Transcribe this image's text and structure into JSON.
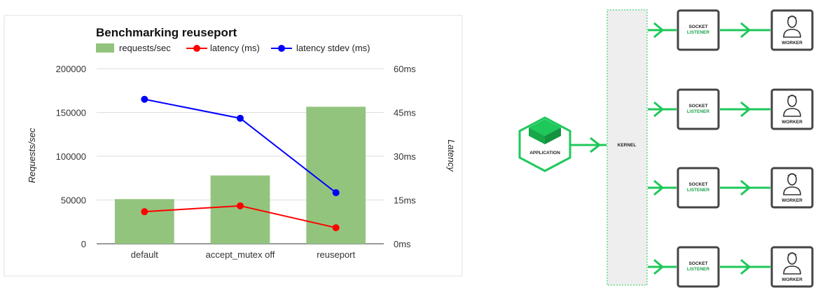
{
  "chart_data": {
    "type": "bar",
    "title": "Benchmarking reuseport",
    "categories": [
      "default",
      "accept_mutex off",
      "reuseport"
    ],
    "ylabel": "Requests/sec",
    "y2label": "Latency",
    "ylim": [
      0,
      200000
    ],
    "y2lim": [
      0,
      60
    ],
    "y_ticks": [
      "0",
      "50000",
      "100000",
      "150000",
      "200000"
    ],
    "y2_ticks": [
      "0ms",
      "15ms",
      "30ms",
      "45ms",
      "60ms"
    ],
    "grid": true,
    "legend_position": "top",
    "series": [
      {
        "name": "requests/sec",
        "type": "bar",
        "axis": "left",
        "color": "#93c47d",
        "values": [
          51000,
          78000,
          156500
        ]
      },
      {
        "name": "latency (ms)",
        "type": "line",
        "axis": "right",
        "color": "#ff0000",
        "values": [
          11.0,
          13.0,
          5.5
        ]
      },
      {
        "name": "latency stdev (ms)",
        "type": "line",
        "axis": "right",
        "color": "#0000ff",
        "values": [
          49.5,
          43.0,
          17.5
        ]
      }
    ]
  },
  "diagram": {
    "application_label": "APPLICATION",
    "kernel_label": "KERNEL",
    "socket_label_line1": "SOCKET",
    "socket_label_line2": "LISTENER",
    "worker_label": "WORKER",
    "accent_color": "#1ec85a",
    "rows": 4
  }
}
